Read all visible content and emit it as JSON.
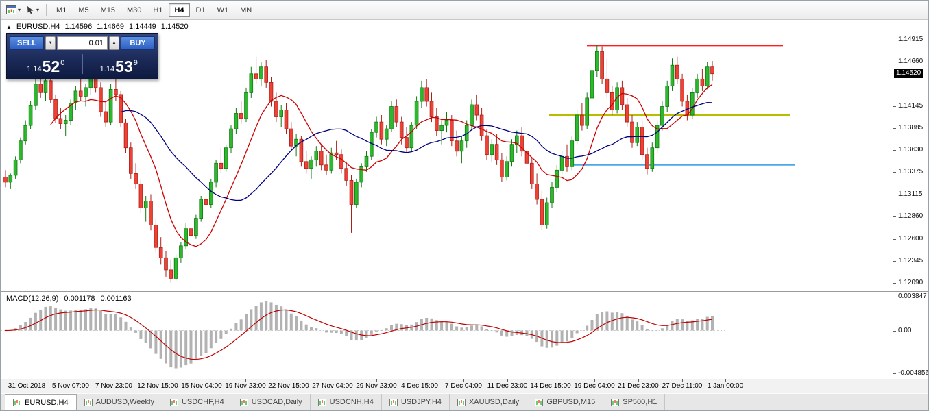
{
  "glyphs": {
    "caret_down": "▾",
    "spin_up": "▲",
    "spin_down": "▼",
    "panel_toggle": "▲"
  },
  "toolbar": {
    "icons": [
      {
        "name": "chart-window-icon"
      },
      {
        "name": "cursor-tool-icon"
      }
    ],
    "timeframes": [
      {
        "label": "M1",
        "active": false
      },
      {
        "label": "M5",
        "active": false
      },
      {
        "label": "M15",
        "active": false
      },
      {
        "label": "M30",
        "active": false
      },
      {
        "label": "H1",
        "active": false
      },
      {
        "label": "H4",
        "active": true
      },
      {
        "label": "D1",
        "active": false
      },
      {
        "label": "W1",
        "active": false
      },
      {
        "label": "MN",
        "active": false
      }
    ]
  },
  "chart": {
    "header": {
      "symbol_period": "EURUSD,H4",
      "open": "1.14596",
      "high": "1.14669",
      "low": "1.14449",
      "close": "1.14520"
    },
    "trade_panel": {
      "sell_label": "SELL",
      "buy_label": "BUY",
      "lot_size": "0.01",
      "sell_price": {
        "prefix": "1.14",
        "big": "52",
        "sup": "0"
      },
      "buy_price": {
        "prefix": "1.14",
        "big": "53",
        "sup": "9"
      },
      "panel_color": "#1c2b59",
      "button_color": "#2c5ec2"
    },
    "price_axis_labels": [
      "1.14915",
      "1.14660",
      "1.14145",
      "1.13885",
      "1.13630",
      "1.13375",
      "1.13115",
      "1.12860",
      "1.12600",
      "1.12345",
      "1.12090"
    ],
    "current_price": "1.14520"
  },
  "chart_data": {
    "type": "candlestick",
    "symbol": "EURUSD",
    "timeframe": "H4",
    "ylim": [
      1.1204,
      1.151
    ],
    "up_color": "#2eb82e",
    "up_stroke": "#117a11",
    "down_color": "#ef4136",
    "down_stroke": "#a8221a",
    "moving_averages": [
      {
        "period": 10,
        "color": "#cc0000"
      },
      {
        "period": 24,
        "color": "#000080"
      }
    ],
    "hlines": [
      {
        "price": 1.1485,
        "color": "#ff1f1f",
        "x1": 0.657,
        "x2": 0.877,
        "width": 2
      },
      {
        "price": 1.1404,
        "color": "#b8bd00",
        "x1": 0.615,
        "x2": 0.885,
        "width": 2
      },
      {
        "price": 1.1346,
        "color": "#4da6e8",
        "x1": 0.638,
        "x2": 0.89,
        "width": 2
      }
    ],
    "x_labels": [
      "31 Oct 2018",
      "5 Nov 07:00",
      "7 Nov 23:00",
      "12 Nov 15:00",
      "15 Nov 04:00",
      "19 Nov 23:00",
      "22 Nov 15:00",
      "27 Nov 04:00",
      "29 Nov 23:00",
      "4 Dec 15:00",
      "7 Dec 04:00",
      "11 Dec 23:00",
      "14 Dec 15:00",
      "19 Dec 04:00",
      "21 Dec 23:00",
      "27 Dec 11:00",
      "1 Jan 00:00"
    ],
    "candles": [
      [
        1.1332,
        1.134,
        1.132,
        1.1326
      ],
      [
        1.1326,
        1.1336,
        1.1318,
        1.1334
      ],
      [
        1.1334,
        1.1356,
        1.133,
        1.1352
      ],
      [
        1.1352,
        1.1378,
        1.1348,
        1.1374
      ],
      [
        1.1374,
        1.1398,
        1.137,
        1.1392
      ],
      [
        1.1392,
        1.142,
        1.1388,
        1.1415
      ],
      [
        1.1415,
        1.1446,
        1.141,
        1.144
      ],
      [
        1.144,
        1.1452,
        1.1424,
        1.143
      ],
      [
        1.143,
        1.1448,
        1.142,
        1.1444
      ],
      [
        1.1444,
        1.145,
        1.1418,
        1.1422
      ],
      [
        1.1422,
        1.1428,
        1.1395,
        1.14
      ],
      [
        1.14,
        1.1412,
        1.1388,
        1.1394
      ],
      [
        1.1394,
        1.1404,
        1.138,
        1.1398
      ],
      [
        1.1398,
        1.1422,
        1.1392,
        1.1418
      ],
      [
        1.1418,
        1.1438,
        1.141,
        1.1432
      ],
      [
        1.1432,
        1.1446,
        1.142,
        1.1426
      ],
      [
        1.1426,
        1.144,
        1.1414,
        1.1436
      ],
      [
        1.1436,
        1.1458,
        1.1428,
        1.145
      ],
      [
        1.145,
        1.1462,
        1.143,
        1.1436
      ],
      [
        1.1436,
        1.1442,
        1.1402,
        1.1408
      ],
      [
        1.1408,
        1.142,
        1.139,
        1.1396
      ],
      [
        1.1396,
        1.144,
        1.1392,
        1.1434
      ],
      [
        1.1434,
        1.1452,
        1.142,
        1.1428
      ],
      [
        1.1428,
        1.1432,
        1.139,
        1.1395
      ],
      [
        1.1395,
        1.14,
        1.136,
        1.1366
      ],
      [
        1.1366,
        1.1372,
        1.133,
        1.1336
      ],
      [
        1.1336,
        1.1348,
        1.1318,
        1.1324
      ],
      [
        1.1324,
        1.133,
        1.129,
        1.1296
      ],
      [
        1.1296,
        1.131,
        1.128,
        1.1304
      ],
      [
        1.1304,
        1.1312,
        1.127,
        1.1276
      ],
      [
        1.1276,
        1.1284,
        1.1244,
        1.125
      ],
      [
        1.125,
        1.1262,
        1.123,
        1.1238
      ],
      [
        1.1238,
        1.1246,
        1.1216,
        1.1224
      ],
      [
        1.1224,
        1.1236,
        1.1209,
        1.1214
      ],
      [
        1.1214,
        1.1242,
        1.1212,
        1.1238
      ],
      [
        1.1238,
        1.1256,
        1.1232,
        1.1252
      ],
      [
        1.1252,
        1.1278,
        1.1248,
        1.1272
      ],
      [
        1.1272,
        1.129,
        1.1258,
        1.1264
      ],
      [
        1.1264,
        1.1288,
        1.126,
        1.1284
      ],
      [
        1.1284,
        1.131,
        1.128,
        1.1306
      ],
      [
        1.1306,
        1.1322,
        1.1296,
        1.13
      ],
      [
        1.13,
        1.133,
        1.1296,
        1.1326
      ],
      [
        1.1326,
        1.1352,
        1.132,
        1.1348
      ],
      [
        1.1348,
        1.1366,
        1.1336,
        1.1342
      ],
      [
        1.1342,
        1.137,
        1.1338,
        1.1366
      ],
      [
        1.1366,
        1.1392,
        1.136,
        1.1388
      ],
      [
        1.1388,
        1.1412,
        1.1382,
        1.1406
      ],
      [
        1.1406,
        1.142,
        1.1394,
        1.14
      ],
      [
        1.14,
        1.1436,
        1.1396,
        1.143
      ],
      [
        1.143,
        1.146,
        1.1424,
        1.1452
      ],
      [
        1.1452,
        1.1472,
        1.144,
        1.1446
      ],
      [
        1.1446,
        1.1466,
        1.1438,
        1.146
      ],
      [
        1.146,
        1.1468,
        1.1436,
        1.1442
      ],
      [
        1.1442,
        1.1448,
        1.1414,
        1.142
      ],
      [
        1.142,
        1.143,
        1.1396,
        1.1402
      ],
      [
        1.1402,
        1.1416,
        1.139,
        1.141
      ],
      [
        1.141,
        1.1418,
        1.1382,
        1.1388
      ],
      [
        1.1388,
        1.1396,
        1.1362,
        1.1368
      ],
      [
        1.1368,
        1.1382,
        1.1356,
        1.1376
      ],
      [
        1.1376,
        1.138,
        1.1344,
        1.135
      ],
      [
        1.135,
        1.1362,
        1.1336,
        1.1342
      ],
      [
        1.1342,
        1.1356,
        1.133,
        1.1352
      ],
      [
        1.1352,
        1.1368,
        1.1344,
        1.1362
      ],
      [
        1.1362,
        1.137,
        1.134,
        1.1346
      ],
      [
        1.1346,
        1.1358,
        1.1334,
        1.134
      ],
      [
        1.134,
        1.1366,
        1.1336,
        1.136
      ],
      [
        1.136,
        1.1374,
        1.1352,
        1.1358
      ],
      [
        1.1358,
        1.1364,
        1.1336,
        1.1342
      ],
      [
        1.1342,
        1.135,
        1.1322,
        1.1328
      ],
      [
        1.1328,
        1.1334,
        1.1267,
        1.13
      ],
      [
        1.13,
        1.133,
        1.1296,
        1.1326
      ],
      [
        1.1326,
        1.1348,
        1.132,
        1.1344
      ],
      [
        1.1344,
        1.1362,
        1.1338,
        1.1356
      ],
      [
        1.1356,
        1.1388,
        1.1352,
        1.1384
      ],
      [
        1.1384,
        1.1402,
        1.1378,
        1.1396
      ],
      [
        1.1396,
        1.1404,
        1.137,
        1.1376
      ],
      [
        1.1376,
        1.1392,
        1.1368,
        1.1388
      ],
      [
        1.1388,
        1.142,
        1.1384,
        1.1414
      ],
      [
        1.1414,
        1.1422,
        1.139,
        1.1396
      ],
      [
        1.1396,
        1.1402,
        1.137,
        1.1378
      ],
      [
        1.1378,
        1.139,
        1.136,
        1.1366
      ],
      [
        1.1366,
        1.1396,
        1.1362,
        1.1392
      ],
      [
        1.1392,
        1.1426,
        1.1388,
        1.142
      ],
      [
        1.142,
        1.1444,
        1.1412,
        1.1436
      ],
      [
        1.1436,
        1.1446,
        1.1414,
        1.142
      ],
      [
        1.142,
        1.143,
        1.1396,
        1.1402
      ],
      [
        1.1402,
        1.1412,
        1.138,
        1.1386
      ],
      [
        1.1386,
        1.1398,
        1.137,
        1.1392
      ],
      [
        1.1392,
        1.1408,
        1.1384,
        1.1398
      ],
      [
        1.1398,
        1.1404,
        1.1368,
        1.1374
      ],
      [
        1.1374,
        1.1386,
        1.1356,
        1.1362
      ],
      [
        1.1362,
        1.138,
        1.1348,
        1.1374
      ],
      [
        1.1374,
        1.1398,
        1.1366,
        1.1392
      ],
      [
        1.1392,
        1.1422,
        1.1386,
        1.1416
      ],
      [
        1.1416,
        1.1428,
        1.1398,
        1.1404
      ],
      [
        1.1404,
        1.1412,
        1.1374,
        1.138
      ],
      [
        1.138,
        1.1388,
        1.1352,
        1.1358
      ],
      [
        1.1358,
        1.1376,
        1.135,
        1.137
      ],
      [
        1.137,
        1.1382,
        1.1346,
        1.1352
      ],
      [
        1.1352,
        1.136,
        1.1326,
        1.1332
      ],
      [
        1.1332,
        1.1356,
        1.1328,
        1.135
      ],
      [
        1.135,
        1.1376,
        1.1344,
        1.137
      ],
      [
        1.137,
        1.1386,
        1.136,
        1.138
      ],
      [
        1.138,
        1.139,
        1.1356,
        1.1362
      ],
      [
        1.1362,
        1.137,
        1.1342,
        1.1348
      ],
      [
        1.1348,
        1.1354,
        1.1318,
        1.1324
      ],
      [
        1.1324,
        1.1336,
        1.13,
        1.1306
      ],
      [
        1.1306,
        1.1316,
        1.127,
        1.1276
      ],
      [
        1.1276,
        1.1308,
        1.1272,
        1.1302
      ],
      [
        1.1302,
        1.1326,
        1.1296,
        1.132
      ],
      [
        1.132,
        1.1346,
        1.1314,
        1.134
      ],
      [
        1.134,
        1.1362,
        1.1334,
        1.1356
      ],
      [
        1.1356,
        1.137,
        1.1338,
        1.1344
      ],
      [
        1.1344,
        1.138,
        1.134,
        1.1374
      ],
      [
        1.1374,
        1.141,
        1.137,
        1.1404
      ],
      [
        1.1404,
        1.1418,
        1.1386,
        1.1392
      ],
      [
        1.1392,
        1.143,
        1.1388,
        1.1424
      ],
      [
        1.1424,
        1.1462,
        1.1418,
        1.1456
      ],
      [
        1.1456,
        1.1486,
        1.1448,
        1.1478
      ],
      [
        1.1478,
        1.1484,
        1.144,
        1.1446
      ],
      [
        1.1446,
        1.147,
        1.1424,
        1.143
      ],
      [
        1.143,
        1.1438,
        1.1404,
        1.141
      ],
      [
        1.141,
        1.1442,
        1.1406,
        1.1436
      ],
      [
        1.1436,
        1.1444,
        1.141,
        1.1416
      ],
      [
        1.1416,
        1.1424,
        1.139,
        1.1396
      ],
      [
        1.1396,
        1.1404,
        1.1366,
        1.1372
      ],
      [
        1.1372,
        1.1396,
        1.1368,
        1.139
      ],
      [
        1.139,
        1.1398,
        1.1352,
        1.1358
      ],
      [
        1.1358,
        1.1366,
        1.1335,
        1.1342
      ],
      [
        1.1342,
        1.1372,
        1.1338,
        1.1366
      ],
      [
        1.1366,
        1.1398,
        1.136,
        1.1392
      ],
      [
        1.1392,
        1.142,
        1.1386,
        1.1414
      ],
      [
        1.1414,
        1.1444,
        1.1408,
        1.1438
      ],
      [
        1.1438,
        1.147,
        1.1432,
        1.1462
      ],
      [
        1.1462,
        1.1472,
        1.144,
        1.1446
      ],
      [
        1.1446,
        1.1452,
        1.1414,
        1.142
      ],
      [
        1.142,
        1.1428,
        1.1398,
        1.1404
      ],
      [
        1.1404,
        1.1436,
        1.14,
        1.143
      ],
      [
        1.143,
        1.1452,
        1.1424,
        1.1446
      ],
      [
        1.1446,
        1.1458,
        1.1432,
        1.1438
      ],
      [
        1.1438,
        1.1466,
        1.1434,
        1.146
      ],
      [
        1.146,
        1.1467,
        1.1444,
        1.1452
      ]
    ],
    "macd": {
      "label": "MACD(12,26,9)",
      "params": [
        12,
        26,
        9
      ],
      "value_main": "0.001178",
      "value_signal": "0.001163",
      "ylim": [
        -0.004856,
        0.003847
      ],
      "axis_labels": [
        "0.003847",
        "0.00",
        "-0.004856"
      ],
      "hist_color": "#b2b2b2",
      "signal_color": "#c00000"
    }
  },
  "bottom_tabs": [
    {
      "label": "EURUSD,H4",
      "active": true
    },
    {
      "label": "AUDUSD,Weekly",
      "active": false
    },
    {
      "label": "USDCHF,H4",
      "active": false
    },
    {
      "label": "USDCAD,Daily",
      "active": false
    },
    {
      "label": "USDCNH,H4",
      "active": false
    },
    {
      "label": "USDJPY,H4",
      "active": false
    },
    {
      "label": "XAUUSD,Daily",
      "active": false
    },
    {
      "label": "GBPUSD,M15",
      "active": false
    },
    {
      "label": "SP500,H1",
      "active": false
    }
  ]
}
